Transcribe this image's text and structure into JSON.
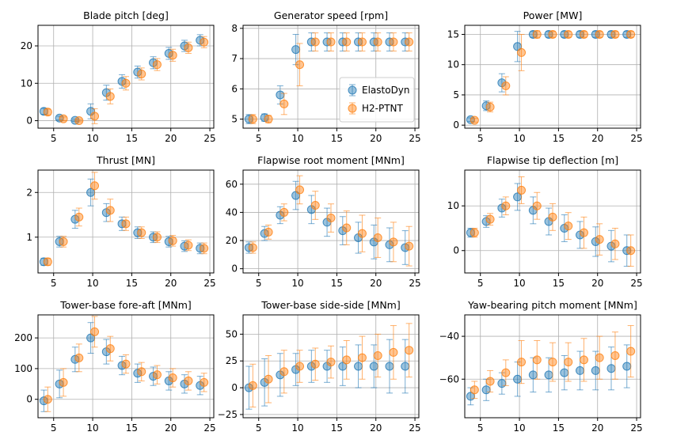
{
  "colors": {
    "ElastoDyn": "#1f77b4",
    "H2-PTNT": "#ff7f0e"
  },
  "legend": {
    "entries": [
      "ElastoDyn",
      "H2-PTNT"
    ],
    "placement": "lower-right",
    "panel": 1
  },
  "chart_data": [
    {
      "type": "scatter",
      "title": "Blade pitch [deg]",
      "xlim": [
        3,
        25.5
      ],
      "ylim": [
        -2,
        25.5
      ],
      "xticks": [
        5,
        10,
        15,
        20,
        25
      ],
      "yticks": [
        0,
        10,
        20
      ],
      "x": [
        4,
        6,
        8,
        10,
        12,
        14,
        16,
        18,
        20,
        22,
        24
      ],
      "series": [
        {
          "name": "ElastoDyn",
          "y": [
            2.5,
            0.7,
            0.1,
            2.5,
            7.5,
            10.5,
            13,
            15.5,
            18,
            20,
            21.5
          ],
          "err": [
            0.8,
            0.5,
            0.3,
            2.0,
            2.0,
            1.8,
            1.6,
            1.6,
            1.6,
            1.5,
            1.5
          ]
        },
        {
          "name": "H2-PTNT",
          "y": [
            2.3,
            0.5,
            0,
            1.2,
            6.5,
            10,
            12.5,
            15,
            17.5,
            19.5,
            21
          ],
          "err": [
            0.8,
            0.5,
            0.3,
            2.0,
            2.0,
            1.8,
            1.6,
            1.6,
            1.6,
            1.5,
            1.5
          ]
        }
      ]
    },
    {
      "type": "scatter",
      "title": "Generator speed [rpm]",
      "xlim": [
        3,
        25.5
      ],
      "ylim": [
        4.7,
        8.1
      ],
      "xticks": [
        5,
        10,
        15,
        20,
        25
      ],
      "yticks": [
        5,
        6,
        7,
        8
      ],
      "x": [
        4,
        6,
        8,
        10,
        12,
        14,
        16,
        18,
        20,
        22,
        24
      ],
      "series": [
        {
          "name": "ElastoDyn",
          "y": [
            5.0,
            5.05,
            5.8,
            7.3,
            7.55,
            7.55,
            7.55,
            7.55,
            7.55,
            7.55,
            7.55
          ],
          "err": [
            0.15,
            0.12,
            0.3,
            0.5,
            0.3,
            0.3,
            0.3,
            0.3,
            0.3,
            0.3,
            0.3
          ]
        },
        {
          "name": "H2-PTNT",
          "y": [
            5.0,
            5.0,
            5.5,
            6.8,
            7.55,
            7.55,
            7.55,
            7.55,
            7.55,
            7.55,
            7.55
          ],
          "err": [
            0.15,
            0.12,
            0.35,
            0.7,
            0.3,
            0.3,
            0.3,
            0.3,
            0.3,
            0.3,
            0.3
          ]
        }
      ]
    },
    {
      "type": "scatter",
      "title": "Power [MW]",
      "xlim": [
        3,
        25.5
      ],
      "ylim": [
        -0.5,
        16.5
      ],
      "xticks": [
        5,
        10,
        15,
        20,
        25
      ],
      "yticks": [
        0,
        5,
        10,
        15
      ],
      "x": [
        4,
        6,
        8,
        10,
        12,
        14,
        16,
        18,
        20,
        22,
        24
      ],
      "series": [
        {
          "name": "ElastoDyn",
          "y": [
            0.9,
            3.2,
            7.0,
            13,
            15,
            15,
            15,
            15,
            15,
            15,
            15
          ],
          "err": [
            0.3,
            0.8,
            1.5,
            2.5,
            0.5,
            0.5,
            0.5,
            0.5,
            0.5,
            0.5,
            0.5
          ]
        },
        {
          "name": "H2-PTNT",
          "y": [
            0.8,
            3.0,
            6.5,
            12,
            15,
            15,
            15,
            15,
            15,
            15,
            15
          ],
          "err": [
            0.3,
            0.8,
            1.5,
            3.0,
            0.6,
            0.5,
            0.5,
            0.5,
            0.5,
            0.5,
            0.5
          ]
        }
      ]
    },
    {
      "type": "scatter",
      "title": "Thrust [MN]",
      "xlim": [
        3,
        25.5
      ],
      "ylim": [
        0.2,
        2.5
      ],
      "xticks": [
        5,
        10,
        15,
        20,
        25
      ],
      "yticks": [
        1,
        2
      ],
      "x": [
        4,
        6,
        8,
        10,
        12,
        14,
        16,
        18,
        20,
        22,
        24
      ],
      "series": [
        {
          "name": "ElastoDyn",
          "y": [
            0.45,
            0.9,
            1.4,
            2.0,
            1.55,
            1.3,
            1.1,
            1.0,
            0.9,
            0.8,
            0.75
          ],
          "err": [
            0.08,
            0.12,
            0.2,
            0.3,
            0.2,
            0.15,
            0.13,
            0.12,
            0.12,
            0.12,
            0.12
          ]
        },
        {
          "name": "H2-PTNT",
          "y": [
            0.45,
            0.9,
            1.45,
            2.15,
            1.6,
            1.3,
            1.1,
            1.0,
            0.92,
            0.82,
            0.75
          ],
          "err": [
            0.08,
            0.12,
            0.2,
            0.3,
            0.25,
            0.15,
            0.13,
            0.12,
            0.12,
            0.12,
            0.12
          ]
        }
      ]
    },
    {
      "type": "scatter",
      "title": "Flapwise root moment [MNm]",
      "xlim": [
        3,
        25.5
      ],
      "ylim": [
        -3,
        70
      ],
      "xticks": [
        5,
        10,
        15,
        20,
        25
      ],
      "yticks": [
        0,
        20,
        40,
        60
      ],
      "x": [
        4,
        6,
        8,
        10,
        12,
        14,
        16,
        18,
        20,
        22,
        24
      ],
      "series": [
        {
          "name": "ElastoDyn",
          "y": [
            15,
            25,
            38,
            52,
            42,
            33,
            27,
            22,
            19,
            17,
            15
          ],
          "err": [
            4,
            5,
            6,
            10,
            10,
            10,
            10,
            11,
            12,
            12,
            12
          ]
        },
        {
          "name": "H2-PTNT",
          "y": [
            15,
            26,
            40,
            56,
            45,
            36,
            29,
            25,
            22,
            19,
            16
          ],
          "err": [
            4,
            5,
            6,
            10,
            10,
            10,
            12,
            13,
            14,
            14,
            14
          ]
        }
      ]
    },
    {
      "type": "scatter",
      "title": "Flapwise tip deflection [m]",
      "xlim": [
        3,
        25.5
      ],
      "ylim": [
        -5,
        18
      ],
      "xticks": [
        5,
        10,
        15,
        20,
        25
      ],
      "yticks": [
        0,
        10
      ],
      "x": [
        4,
        6,
        8,
        10,
        12,
        14,
        16,
        18,
        20,
        22,
        24
      ],
      "series": [
        {
          "name": "ElastoDyn",
          "y": [
            4,
            6.5,
            9.5,
            12,
            9,
            6.5,
            5,
            3.5,
            2,
            1,
            0
          ],
          "err": [
            1,
            1.3,
            2,
            3,
            3,
            3,
            3,
            3,
            3.3,
            3.5,
            3.5
          ]
        },
        {
          "name": "H2-PTNT",
          "y": [
            4,
            7,
            10,
            13.5,
            10,
            7.5,
            5.5,
            4,
            2.5,
            1.5,
            0
          ],
          "err": [
            1,
            1.3,
            2,
            3,
            3,
            3,
            3,
            3.5,
            3.5,
            3.5,
            3.5
          ]
        }
      ]
    },
    {
      "type": "scatter",
      "title": "Tower-base fore-aft [MNm]",
      "xlim": [
        3,
        25.5
      ],
      "ylim": [
        -60,
        275
      ],
      "xticks": [
        5,
        10,
        15,
        20,
        25
      ],
      "yticks": [
        0,
        100,
        200
      ],
      "x": [
        4,
        6,
        8,
        10,
        12,
        14,
        16,
        18,
        20,
        22,
        24
      ],
      "series": [
        {
          "name": "ElastoDyn",
          "y": [
            -5,
            50,
            130,
            200,
            155,
            110,
            85,
            75,
            60,
            50,
            45
          ],
          "err": [
            35,
            45,
            40,
            50,
            40,
            30,
            30,
            30,
            30,
            30,
            30
          ]
        },
        {
          "name": "H2-PTNT",
          "y": [
            0,
            55,
            135,
            220,
            165,
            115,
            90,
            80,
            70,
            60,
            55
          ],
          "err": [
            40,
            45,
            45,
            50,
            40,
            30,
            30,
            30,
            30,
            30,
            30
          ]
        }
      ]
    },
    {
      "type": "scatter",
      "title": "Tower-base side-side [MNm]",
      "xlim": [
        3,
        25.5
      ],
      "ylim": [
        -28,
        68
      ],
      "xticks": [
        5,
        10,
        15,
        20,
        25
      ],
      "yticks": [
        -25,
        0,
        25,
        50
      ],
      "x": [
        4,
        6,
        8,
        10,
        12,
        14,
        16,
        18,
        20,
        22,
        24
      ],
      "series": [
        {
          "name": "ElastoDyn",
          "y": [
            0,
            5,
            12,
            17,
            20,
            20,
            20,
            20,
            20,
            20,
            20
          ],
          "err": [
            20,
            22,
            20,
            15,
            15,
            15,
            18,
            20,
            20,
            25,
            25
          ]
        },
        {
          "name": "H2-PTNT",
          "y": [
            2,
            8,
            15,
            20,
            22,
            24,
            26,
            28,
            30,
            33,
            35
          ],
          "err": [
            20,
            22,
            20,
            15,
            15,
            15,
            18,
            20,
            20,
            25,
            25
          ]
        }
      ]
    },
    {
      "type": "scatter",
      "title": "Yaw-bearing pitch moment [MNm]",
      "xlim": [
        3,
        25.5
      ],
      "ylim": [
        -78,
        -30
      ],
      "xticks": [
        5,
        10,
        15,
        20,
        25
      ],
      "yticks": [
        -60,
        -40
      ],
      "x": [
        4,
        6,
        8,
        10,
        12,
        14,
        16,
        18,
        20,
        22,
        24
      ],
      "series": [
        {
          "name": "ElastoDyn",
          "y": [
            -68,
            -65,
            -62,
            -60,
            -58,
            -58,
            -57,
            -56,
            -56,
            -55,
            -54
          ],
          "err": [
            4,
            5,
            5,
            8,
            8,
            8,
            8,
            9,
            9,
            10,
            10
          ]
        },
        {
          "name": "H2-PTNT",
          "y": [
            -65,
            -61,
            -57,
            -52,
            -51,
            -52,
            -52,
            -51,
            -50,
            -49,
            -47
          ],
          "err": [
            4,
            5,
            6,
            10,
            9,
            9,
            9,
            10,
            10,
            11,
            12
          ]
        }
      ]
    }
  ]
}
